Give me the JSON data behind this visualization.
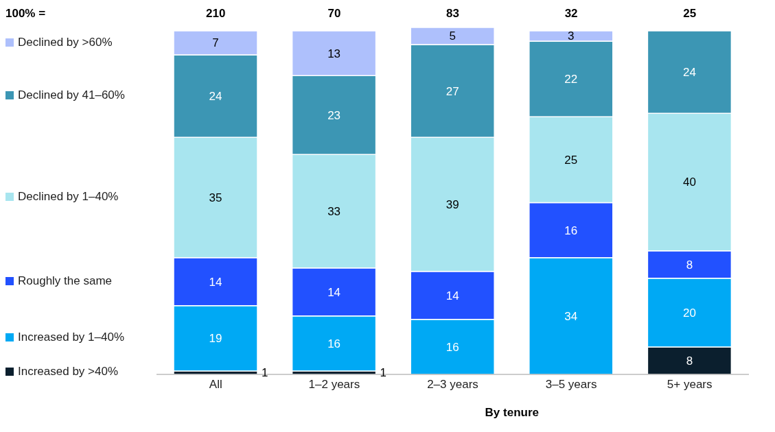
{
  "chart_data": {
    "type": "bar",
    "stacked": true,
    "categories": [
      "All",
      "1–2 years",
      "2–3 years",
      "3–5 years",
      "5+ years"
    ],
    "series": [
      {
        "name": "Increased by >40%",
        "color": "#0b1f2e",
        "values": [
          1,
          1,
          null,
          null,
          8
        ]
      },
      {
        "name": "Increased by 1–40%",
        "color": "#00a9f4",
        "values": [
          19,
          16,
          16,
          34,
          20
        ]
      },
      {
        "name": "Roughly the same",
        "color": "#2251ff",
        "values": [
          14,
          14,
          14,
          16,
          8
        ]
      },
      {
        "name": "Declined by 1–40%",
        "color": "#a8e5ef",
        "values": [
          35,
          33,
          39,
          25,
          40
        ]
      },
      {
        "name": "Declined by 41–60%",
        "color": "#3c96b4",
        "values": [
          24,
          23,
          27,
          22,
          24
        ]
      },
      {
        "name": "Declined by >60%",
        "color": "#aec0fc",
        "values": [
          7,
          13,
          5,
          3,
          null
        ]
      }
    ],
    "data_labels": true,
    "legend": "left",
    "tick_labels": "x",
    "xlabel": "By tenure",
    "annotations": [
      "100% =",
      "210",
      "70",
      "83",
      "32",
      "25"
    ]
  }
}
